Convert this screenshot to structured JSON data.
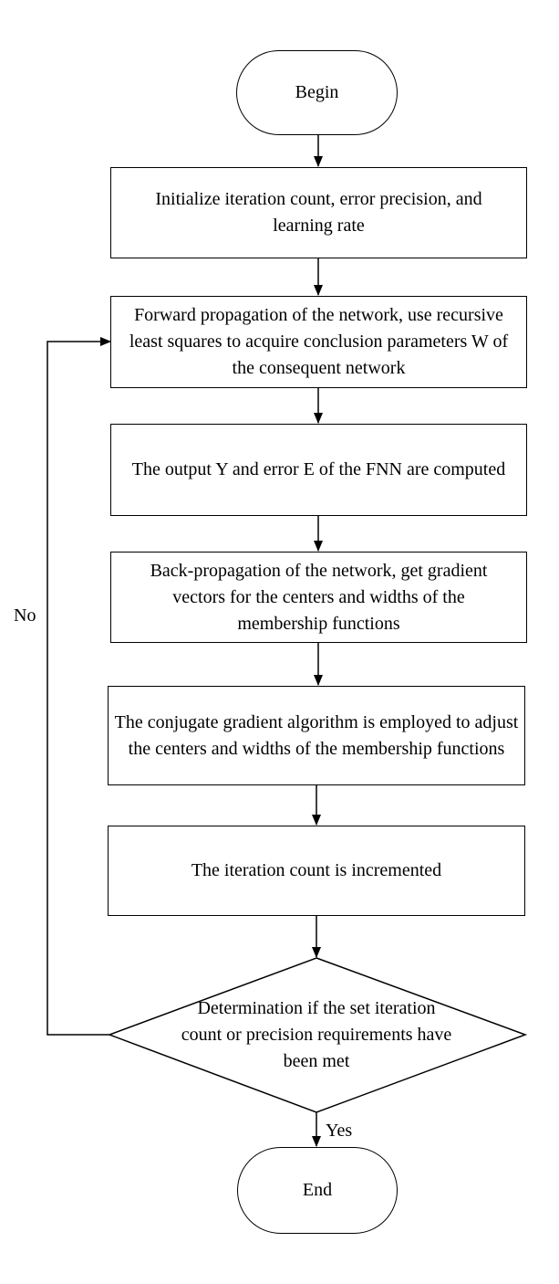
{
  "nodes": {
    "begin": "Begin",
    "init": "Initialize iteration count, error precision, and learning rate",
    "forward": "Forward propagation of the network, use recursive least squares to acquire conclusion parameters W of the consequent network",
    "output": "The output Y and error E of the FNN are computed",
    "backprop": "Back-propagation of the network, get gradient vectors for the centers and widths of the membership functions",
    "conjugate": "The conjugate gradient algorithm is employed to adjust the centers and widths of the membership functions",
    "increment": "The iteration count is incremented",
    "decision": "Determination if the set iteration count or precision requirements have been met",
    "end": "End"
  },
  "edge_labels": {
    "no": "No",
    "yes": "Yes"
  }
}
